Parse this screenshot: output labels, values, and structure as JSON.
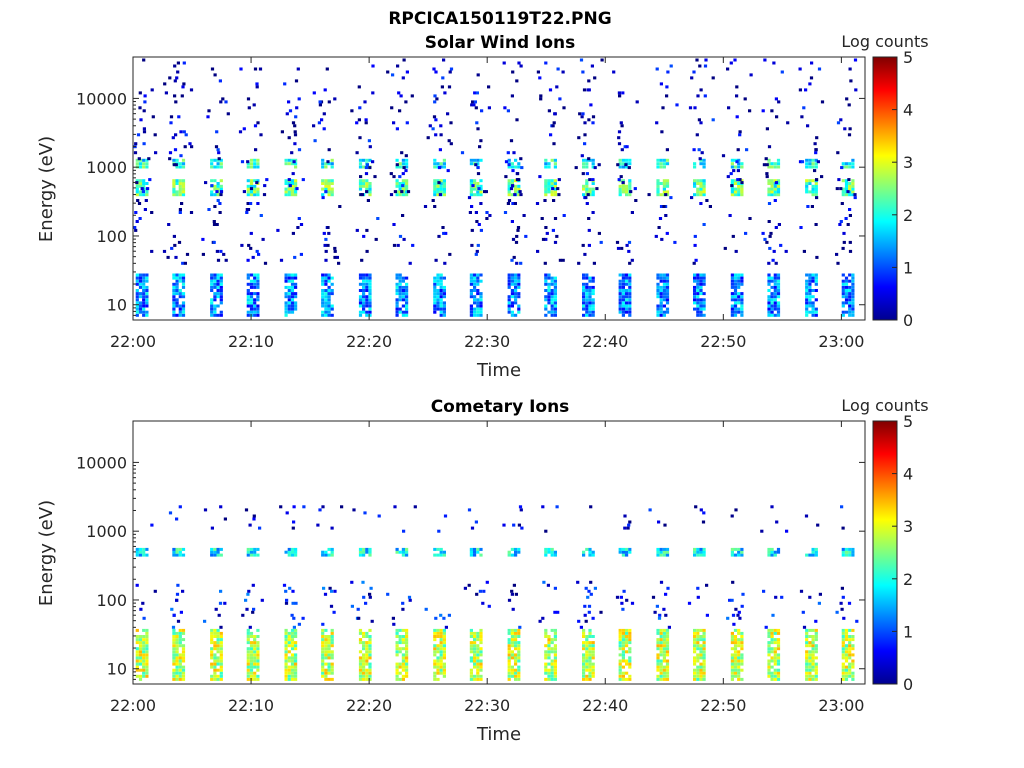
{
  "figure": {
    "title": "RPCICA150119T22.PNG"
  },
  "chart_data": [
    {
      "type": "heatmap",
      "title": "Solar Wind Ions",
      "xlabel": "Time",
      "ylabel": "Energy (eV)",
      "x_ticks": [
        "22:00",
        "22:10",
        "22:20",
        "22:30",
        "22:40",
        "22:50",
        "23:00"
      ],
      "x_range": [
        "22:00",
        "23:02"
      ],
      "y_scale": "log",
      "y_ticks": [
        10,
        100,
        1000,
        10000
      ],
      "y_tick_labels": [
        "10",
        "100",
        "1000",
        "10000"
      ],
      "y_range": [
        6,
        40000
      ],
      "colorbar": {
        "label": "Log counts",
        "range": [
          0,
          5
        ],
        "ticks": [
          "0",
          "1",
          "2",
          "3",
          "4",
          "5"
        ],
        "colormap": "jet"
      },
      "scan_times_min": [
        0.5,
        3.6,
        6.8,
        9.9,
        13.1,
        16.2,
        19.4,
        22.5,
        25.7,
        28.8,
        32.0,
        35.1,
        38.3,
        41.4,
        44.6,
        47.7,
        50.9,
        54.0,
        57.2,
        60.3
      ],
      "bands": [
        {
          "name": "low-energy band",
          "energy_eV": [
            7,
            30
          ],
          "level": 1.3
        },
        {
          "name": "1 keV peak",
          "energy_eV": [
            1000,
            1400
          ],
          "level": 2.0
        },
        {
          "name": "500 eV peak",
          "energy_eV": [
            400,
            700
          ],
          "level": 2.3
        },
        {
          "name": "sparse counts",
          "energy_eV": [
            40,
            40000
          ],
          "level": 0.3
        }
      ]
    },
    {
      "type": "heatmap",
      "title": "Cometary Ions",
      "xlabel": "Time",
      "ylabel": "Energy (eV)",
      "x_ticks": [
        "22:00",
        "22:10",
        "22:20",
        "22:30",
        "22:40",
        "22:50",
        "23:00"
      ],
      "x_range": [
        "22:00",
        "23:02"
      ],
      "y_scale": "log",
      "y_ticks": [
        10,
        100,
        1000,
        10000
      ],
      "y_tick_labels": [
        "10",
        "100",
        "1000",
        "10000"
      ],
      "y_range": [
        6,
        40000
      ],
      "colorbar": {
        "label": "Log counts",
        "range": [
          0,
          5
        ],
        "ticks": [
          "0",
          "1",
          "2",
          "3",
          "4",
          "5"
        ],
        "colormap": "jet"
      },
      "scan_times_min": [
        0.5,
        3.6,
        6.8,
        9.9,
        13.1,
        16.2,
        19.4,
        22.5,
        25.7,
        28.8,
        32.0,
        35.1,
        38.3,
        41.4,
        44.6,
        47.7,
        50.9,
        54.0,
        57.2,
        60.3
      ],
      "bands": [
        {
          "name": "low-energy band",
          "energy_eV": [
            7,
            40
          ],
          "level": 2.8
        },
        {
          "name": "dispersed 40-200 eV",
          "energy_eV": [
            40,
            200
          ],
          "level": 0.6
        },
        {
          "name": "1-2 keV",
          "energy_eV": [
            1000,
            2500
          ],
          "level": 0.3
        },
        {
          "name": "500 eV peak",
          "energy_eV": [
            450,
            600
          ],
          "level": 1.8
        }
      ]
    }
  ]
}
